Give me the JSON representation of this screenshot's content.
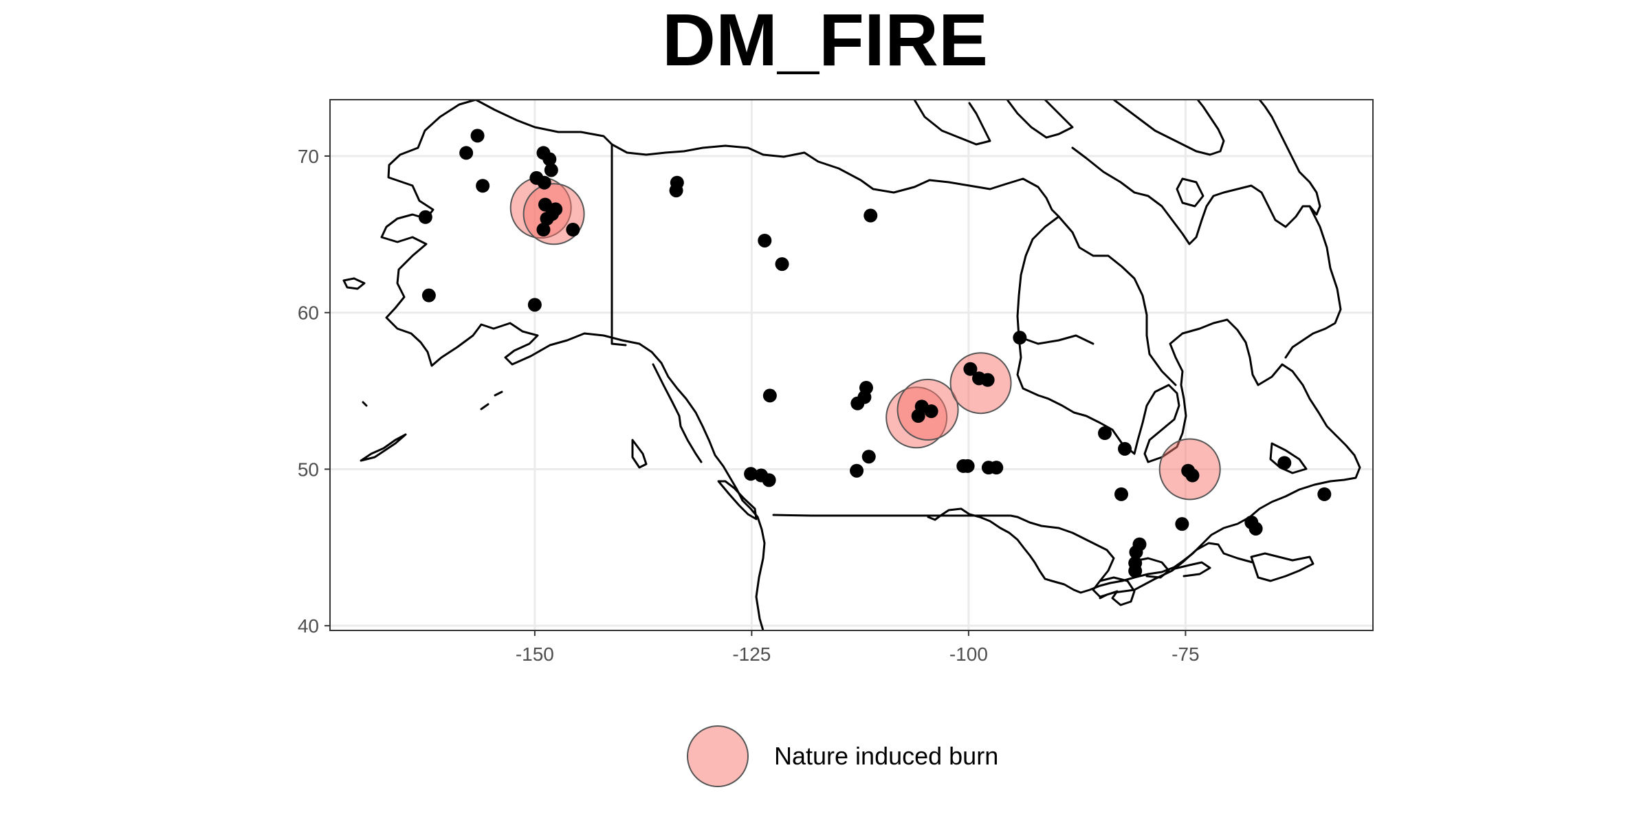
{
  "chart_data": {
    "type": "scatter",
    "title": "DM_FIRE",
    "xlabel": "",
    "ylabel": "",
    "xlim": [
      -173.6,
      -53.4
    ],
    "ylim": [
      39.7,
      73.6
    ],
    "x_ticks": [
      -150,
      -125,
      -100,
      -75
    ],
    "x_tick_labels": [
      "-150",
      "-125",
      "-100",
      "-75"
    ],
    "y_ticks": [
      40,
      50,
      60,
      70
    ],
    "y_tick_labels": [
      "40",
      "50",
      "60",
      "70"
    ],
    "grid": true,
    "legend": {
      "position": "bottom",
      "entries": [
        {
          "label": "Nature induced burn",
          "color": "#F8766D"
        }
      ]
    },
    "colors": {
      "burn_fill": "#F8766D",
      "burn_stroke": "#555555",
      "point": "#000000",
      "coast": "#000000",
      "grid": "#ebebeb",
      "panel_border": "#333333"
    },
    "burns": [
      {
        "x": -149.3,
        "y": 66.7
      },
      {
        "x": -147.8,
        "y": 66.3
      },
      {
        "x": -106.0,
        "y": 53.3
      },
      {
        "x": -104.7,
        "y": 53.8
      },
      {
        "x": -98.6,
        "y": 55.5
      },
      {
        "x": -74.5,
        "y": 50.0
      }
    ],
    "points": [
      {
        "x": -156.6,
        "y": 71.3
      },
      {
        "x": -157.9,
        "y": 70.2
      },
      {
        "x": -149.0,
        "y": 70.2
      },
      {
        "x": -148.3,
        "y": 69.8
      },
      {
        "x": -148.1,
        "y": 69.1
      },
      {
        "x": -149.8,
        "y": 68.6
      },
      {
        "x": -148.9,
        "y": 68.3
      },
      {
        "x": -156.0,
        "y": 68.1
      },
      {
        "x": -133.6,
        "y": 68.3
      },
      {
        "x": -133.7,
        "y": 67.8
      },
      {
        "x": -148.8,
        "y": 66.9
      },
      {
        "x": -147.6,
        "y": 66.6
      },
      {
        "x": -148.0,
        "y": 66.3
      },
      {
        "x": -148.6,
        "y": 66.0
      },
      {
        "x": -149.0,
        "y": 65.3
      },
      {
        "x": -145.6,
        "y": 65.3
      },
      {
        "x": -162.6,
        "y": 66.1
      },
      {
        "x": -111.3,
        "y": 66.2
      },
      {
        "x": -123.5,
        "y": 64.6
      },
      {
        "x": -121.5,
        "y": 63.1
      },
      {
        "x": -162.2,
        "y": 61.1
      },
      {
        "x": -150.0,
        "y": 60.5
      },
      {
        "x": -94.1,
        "y": 58.4
      },
      {
        "x": -99.8,
        "y": 56.4
      },
      {
        "x": -98.8,
        "y": 55.8
      },
      {
        "x": -97.8,
        "y": 55.7
      },
      {
        "x": -111.8,
        "y": 55.2
      },
      {
        "x": -112.0,
        "y": 54.6
      },
      {
        "x": -112.8,
        "y": 54.2
      },
      {
        "x": -122.9,
        "y": 54.7
      },
      {
        "x": -105.4,
        "y": 54.0
      },
      {
        "x": -104.3,
        "y": 53.7
      },
      {
        "x": -105.8,
        "y": 53.4
      },
      {
        "x": -84.3,
        "y": 52.3
      },
      {
        "x": -82.0,
        "y": 51.3
      },
      {
        "x": -111.5,
        "y": 50.8
      },
      {
        "x": -112.9,
        "y": 49.9
      },
      {
        "x": -100.6,
        "y": 50.2
      },
      {
        "x": -100.1,
        "y": 50.2
      },
      {
        "x": -97.7,
        "y": 50.1
      },
      {
        "x": -96.8,
        "y": 50.1
      },
      {
        "x": -74.7,
        "y": 49.9
      },
      {
        "x": -74.2,
        "y": 49.6
      },
      {
        "x": -125.1,
        "y": 49.7
      },
      {
        "x": -123.9,
        "y": 49.6
      },
      {
        "x": -123.0,
        "y": 49.3
      },
      {
        "x": -63.6,
        "y": 50.4
      },
      {
        "x": -82.4,
        "y": 48.4
      },
      {
        "x": -59.0,
        "y": 48.4
      },
      {
        "x": -75.4,
        "y": 46.5
      },
      {
        "x": -67.4,
        "y": 46.6
      },
      {
        "x": -66.9,
        "y": 46.2
      },
      {
        "x": -80.3,
        "y": 45.2
      },
      {
        "x": -80.7,
        "y": 44.7
      },
      {
        "x": -80.8,
        "y": 44.0
      },
      {
        "x": -80.8,
        "y": 43.5
      }
    ]
  }
}
